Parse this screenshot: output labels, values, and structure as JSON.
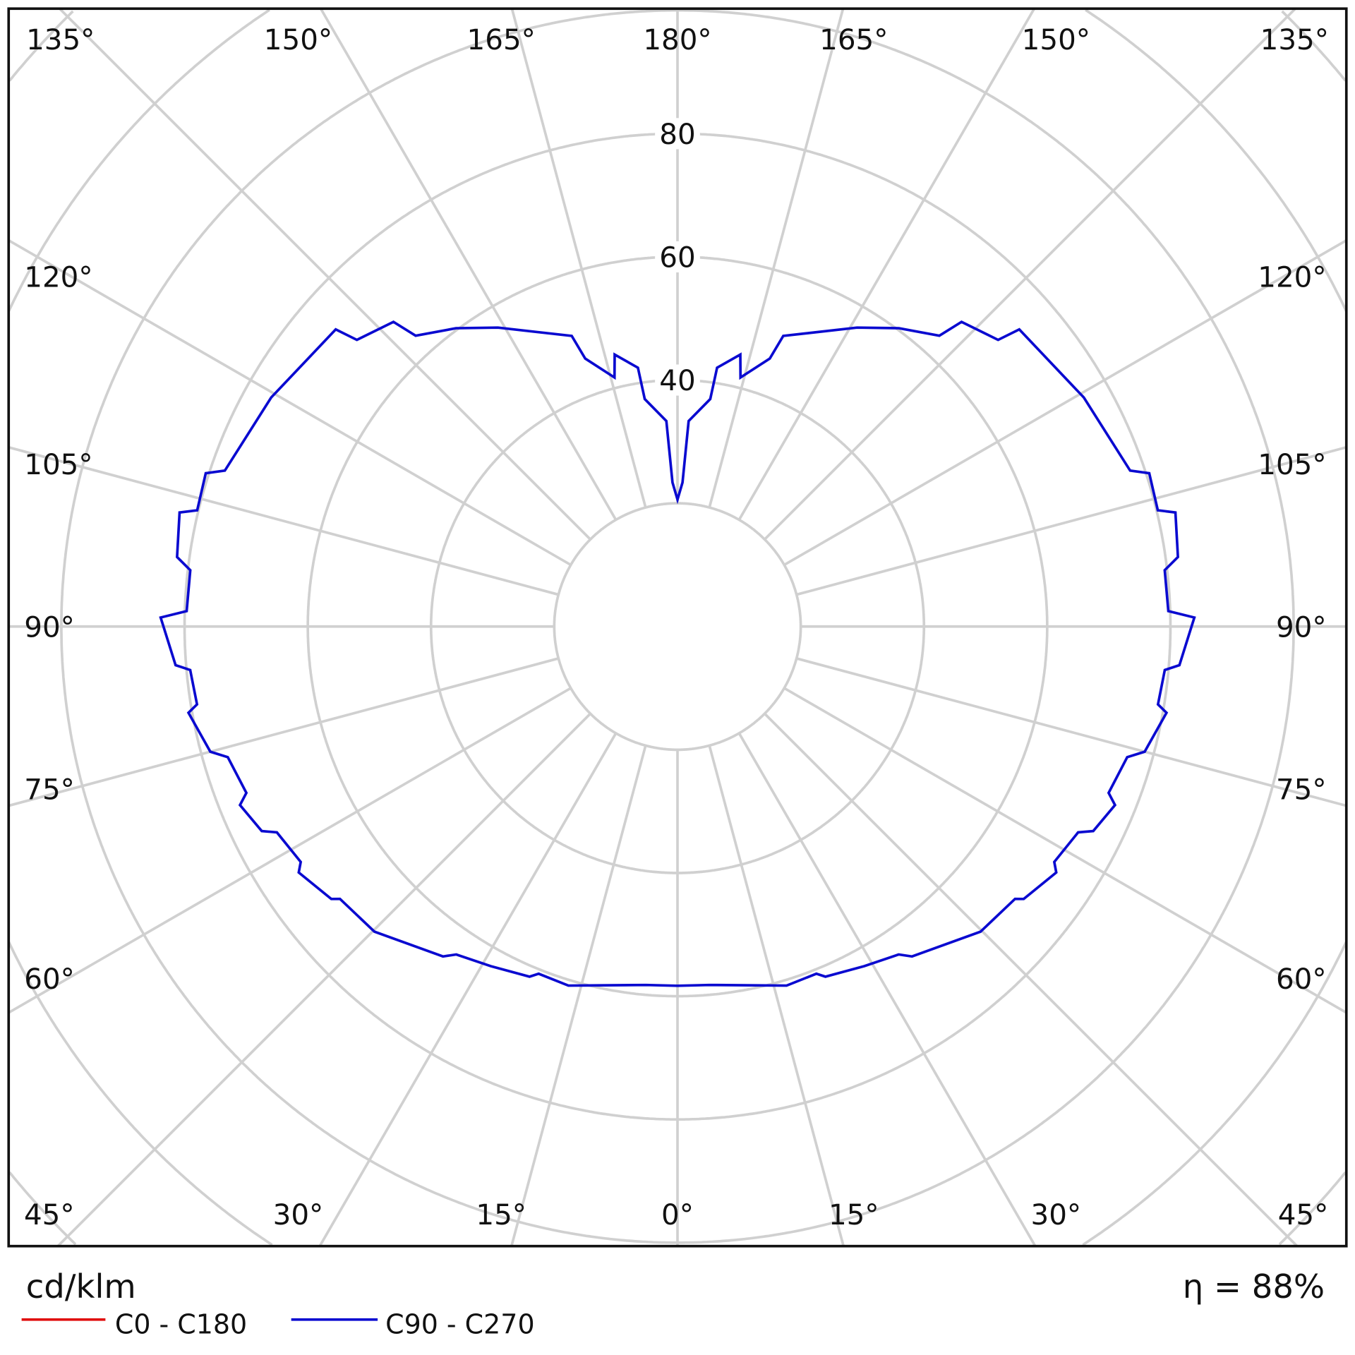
{
  "chart_data": {
    "type": "polar",
    "unit_label": "cd/klm",
    "efficiency_label": "η = 88%",
    "radial_ticks": [
      {
        "value": 40,
        "label": "40"
      },
      {
        "value": 60,
        "label": "60"
      },
      {
        "value": 80,
        "label": "80"
      }
    ],
    "grid_circles": [
      20,
      40,
      60,
      80,
      100,
      120,
      140,
      160
    ],
    "angle_step": 15,
    "angle_labels": {
      "top": [
        "135°",
        "150°",
        "165°",
        "180°",
        "165°",
        "150°",
        "135°"
      ],
      "left": [
        "120°",
        "105°",
        "90°",
        "75°",
        "60°"
      ],
      "right": [
        "120°",
        "105°",
        "90°",
        "75°",
        "60°"
      ],
      "bottom": [
        "45°",
        "30°",
        "15°",
        "0°",
        "15°",
        "30°",
        "45°"
      ]
    },
    "grid": true,
    "legend_position": "bottom-left",
    "series": [
      {
        "name": "C0 - C180",
        "color": "#e01010",
        "points": []
      },
      {
        "name": "C90 - C270",
        "color": "#0a0ad0",
        "symmetric": true,
        "points": [
          [
            0,
            58.3
          ],
          [
            5,
            58.4
          ],
          [
            16.9,
            60.9
          ],
          [
            21.8,
            60.7
          ],
          [
            22.9,
            61.7
          ],
          [
            28.8,
            62.9
          ],
          [
            34,
            64.2
          ],
          [
            35.4,
            65.7
          ],
          [
            44.8,
            69.8
          ],
          [
            51.1,
            70.4
          ],
          [
            51.8,
            71.5
          ],
          [
            57,
            73.3
          ],
          [
            58,
            72.1
          ],
          [
            62.8,
            73.1
          ],
          [
            63.8,
            75.2
          ],
          [
            67.8,
            76.7
          ],
          [
            68.9,
            75.0
          ],
          [
            73.8,
            76.0
          ],
          [
            75,
            78.5
          ],
          [
            80,
            80.6
          ],
          [
            80.8,
            79.0
          ],
          [
            84.9,
            79.4
          ],
          [
            85.6,
            81.7
          ],
          [
            91,
            83.9
          ],
          [
            91.8,
            79.7
          ],
          [
            96.6,
            79.6
          ],
          [
            97.9,
            82.0
          ],
          [
            102.9,
            82.9
          ],
          [
            103.6,
            80.2
          ],
          [
            108,
            80.5
          ],
          [
            109,
            77.7
          ],
          [
            119.4,
            75.7
          ],
          [
            131,
            73.5
          ],
          [
            131.8,
            69.8
          ],
          [
            137,
            67.6
          ],
          [
            138,
            63.5
          ],
          [
            143.4,
            60.3
          ],
          [
            149,
            56.6
          ],
          [
            160,
            50.2
          ],
          [
            161,
            46.0
          ],
          [
            165.8,
            41.7
          ],
          [
            167,
            45.3
          ],
          [
            171.3,
            42.5
          ],
          [
            171.8,
            37.3
          ],
          [
            176.9,
            33.4
          ],
          [
            178,
            23.4
          ],
          [
            180,
            20.6
          ]
        ]
      }
    ]
  }
}
